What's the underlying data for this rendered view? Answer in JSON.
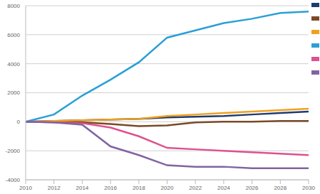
{
  "chart_data": {
    "type": "line",
    "x": [
      2010,
      2012,
      2014,
      2016,
      2018,
      2020,
      2022,
      2024,
      2026,
      2028,
      2030
    ],
    "series": [
      {
        "color": "#1f3b6e",
        "values": [
          0,
          50,
          100,
          150,
          200,
          300,
          350,
          400,
          500,
          600,
          700
        ]
      },
      {
        "color": "#7a4a26",
        "values": [
          0,
          0,
          -50,
          -150,
          -300,
          -250,
          -50,
          0,
          0,
          50,
          50
        ]
      },
      {
        "color": "#f0a020",
        "values": [
          0,
          50,
          100,
          150,
          200,
          400,
          500,
          600,
          700,
          800,
          900
        ]
      },
      {
        "color": "#2a9fd6",
        "values": [
          0,
          500,
          1800,
          2900,
          4100,
          5800,
          6300,
          6800,
          7100,
          7500,
          7600
        ]
      },
      {
        "color": "#e0508f",
        "values": [
          0,
          -50,
          -100,
          -400,
          -1000,
          -1800,
          -1900,
          -2000,
          -2100,
          -2200,
          -2300
        ]
      },
      {
        "color": "#8064a2",
        "values": [
          0,
          -50,
          -200,
          -1700,
          -2300,
          -3000,
          -3100,
          -3100,
          -3200,
          -3200,
          -3200
        ]
      }
    ],
    "xlim": [
      2010,
      2030
    ],
    "xticks": [
      2010,
      2012,
      2014,
      2016,
      2018,
      2020,
      2022,
      2024,
      2026,
      2028,
      2030
    ],
    "ylim": [
      -4000,
      8000
    ],
    "yticks": [
      -4000,
      -2000,
      0,
      2000,
      4000,
      6000,
      8000
    ],
    "grid": true,
    "legend": "right"
  }
}
